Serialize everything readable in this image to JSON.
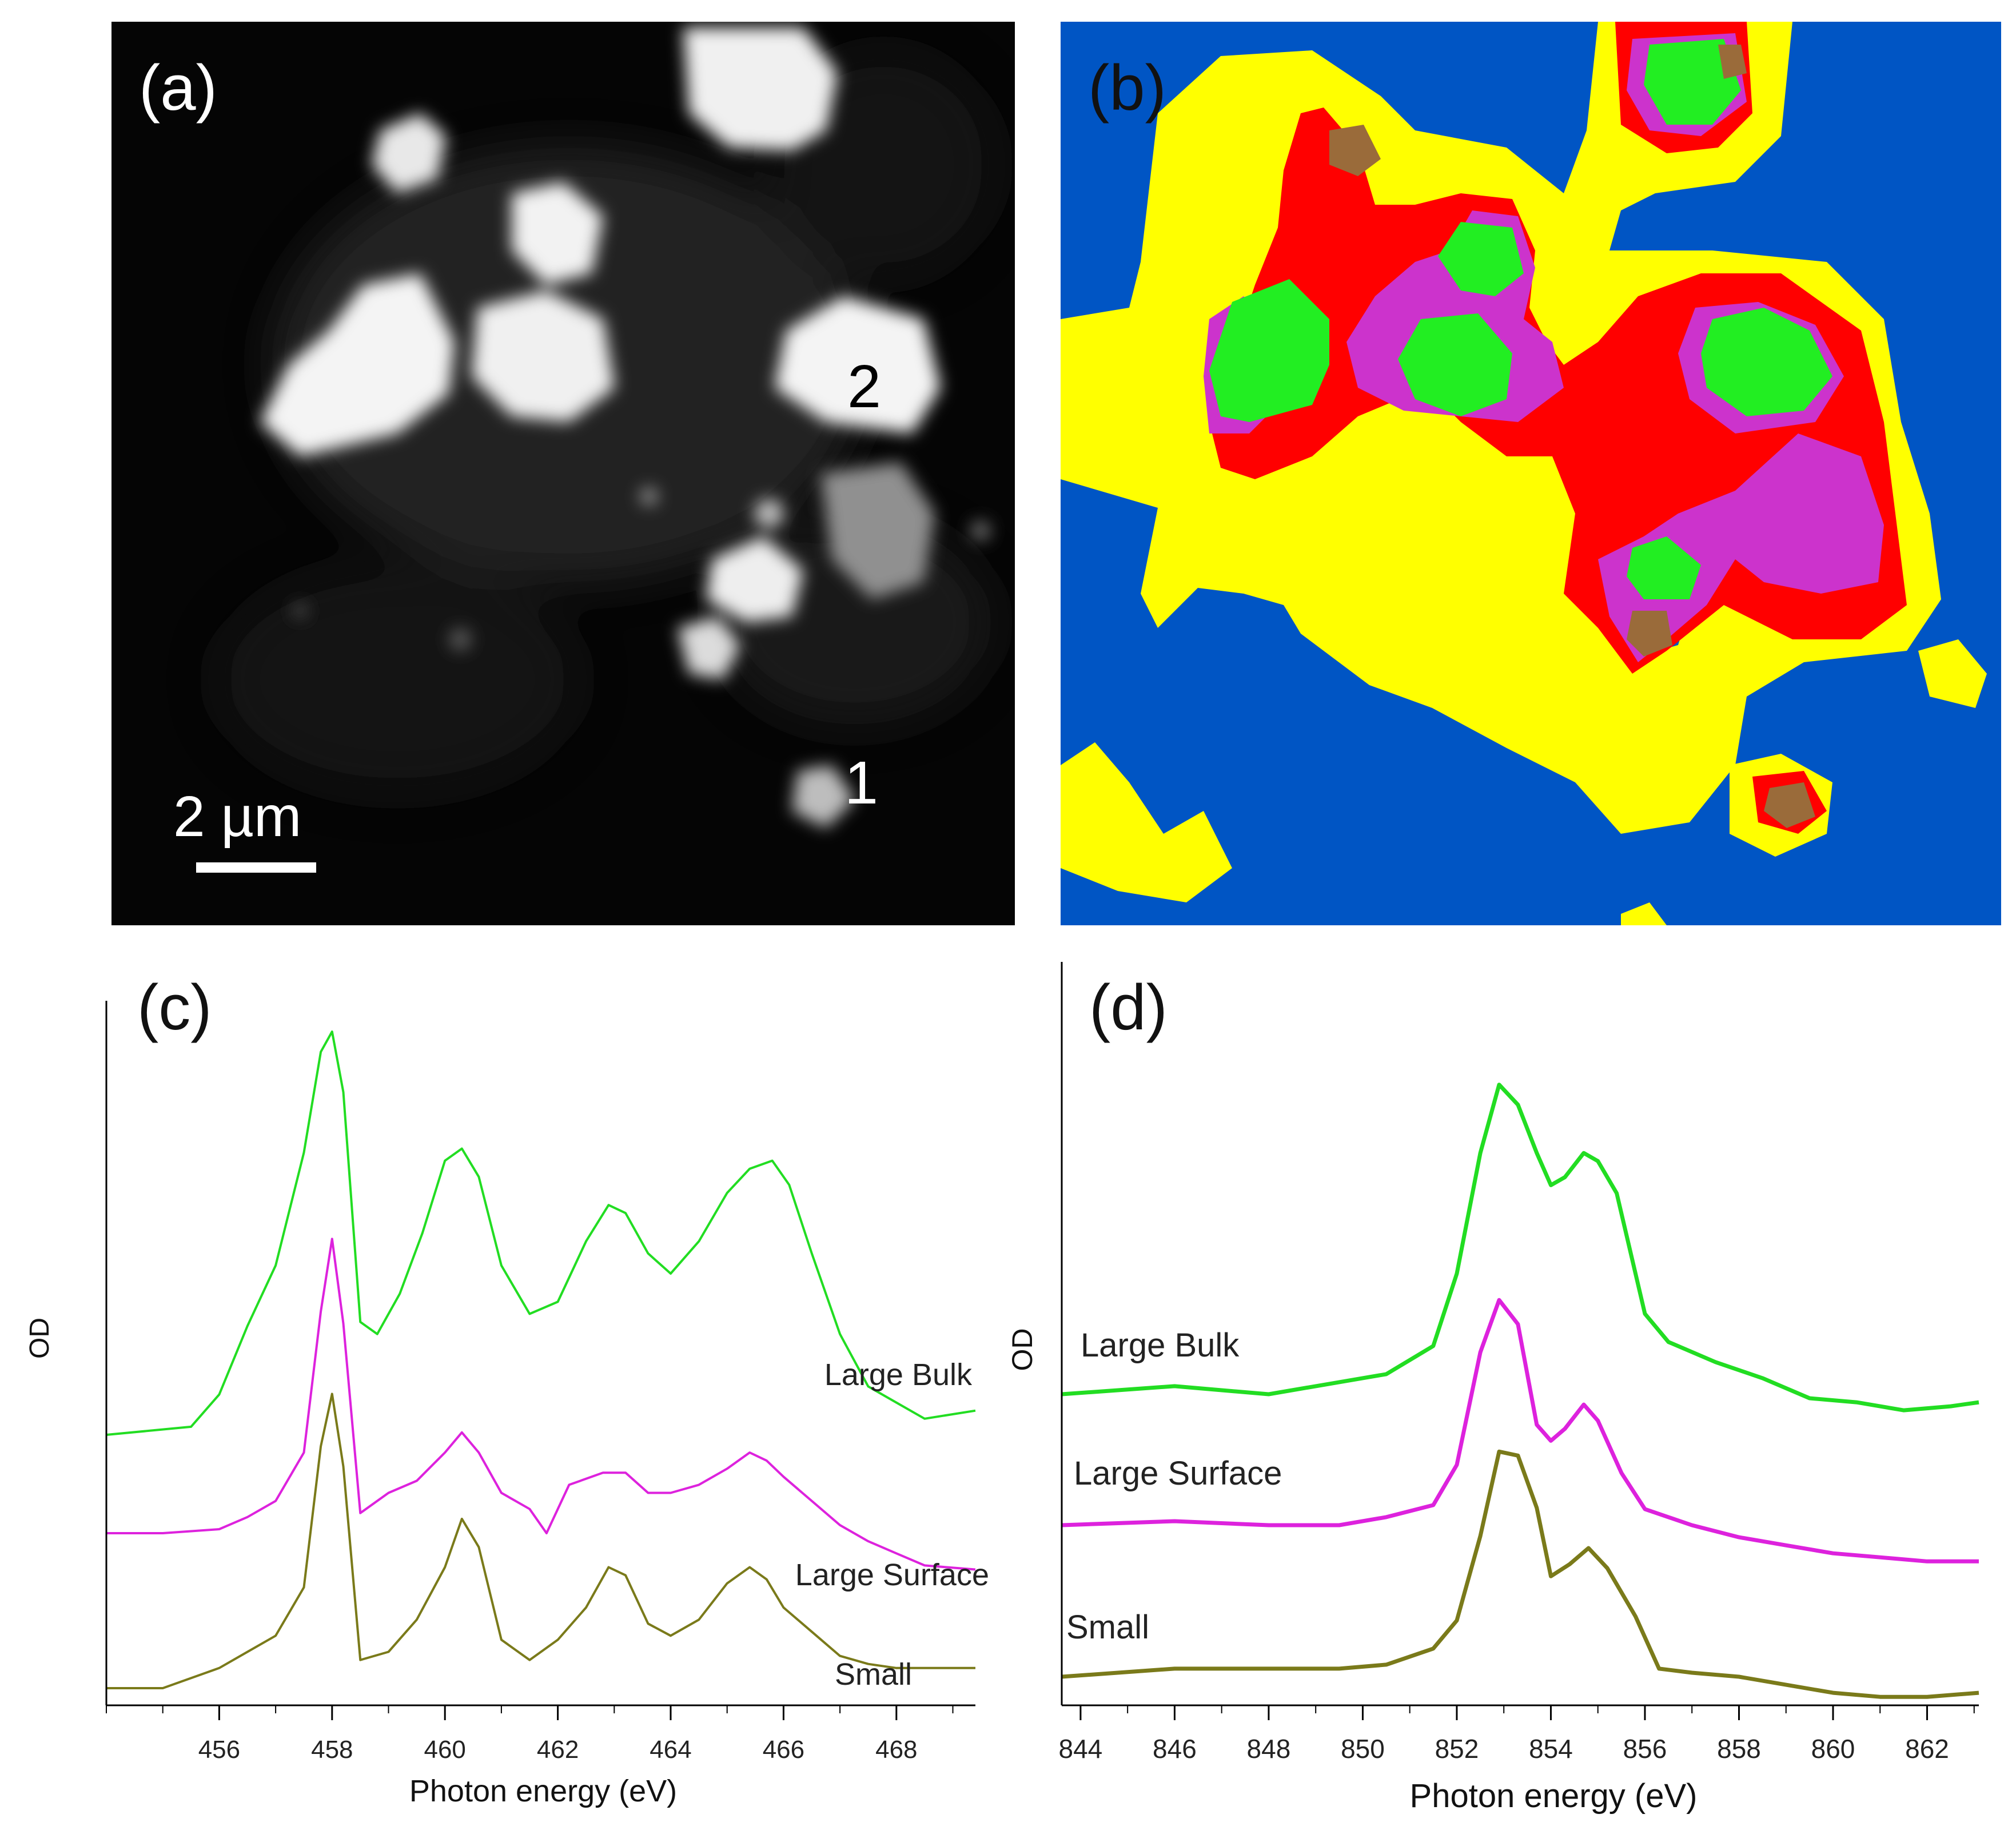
{
  "panel_a": {
    "tag": "(a)",
    "particle_labels": [
      "1",
      "2"
    ],
    "scale_bar": "2 µm"
  },
  "panel_b": {
    "tag": "(b)",
    "colors": {
      "background": "#0055c4",
      "yellow": "#ffff00",
      "red": "#ff0000",
      "magenta": "#cc33cc",
      "green": "#22ee22",
      "brown": "#9a6b3a"
    }
  },
  "chart_data": [
    {
      "type": "line",
      "tag": "(c)",
      "xlabel": "Photon energy (eV)",
      "ylabel": "OD",
      "xlim": [
        454.0,
        469.4
      ],
      "xticks": [
        456,
        458,
        460,
        462,
        464,
        466,
        468
      ],
      "grid": false,
      "series": [
        {
          "name": "Large Bulk",
          "color": "#22dd22",
          "x": [
            454.0,
            455.5,
            456.0,
            456.5,
            457.0,
            457.5,
            457.8,
            458.0,
            458.2,
            458.5,
            458.8,
            459.2,
            459.6,
            460.0,
            460.3,
            460.6,
            461.0,
            461.5,
            462.0,
            462.5,
            462.9,
            463.2,
            463.6,
            464.0,
            464.5,
            465.0,
            465.4,
            465.8,
            466.1,
            466.5,
            467.0,
            467.5,
            468.0,
            468.5,
            469.4
          ],
          "y": [
            0.0,
            0.02,
            0.1,
            0.27,
            0.42,
            0.7,
            0.95,
            1.0,
            0.85,
            0.28,
            0.25,
            0.35,
            0.5,
            0.68,
            0.71,
            0.64,
            0.42,
            0.3,
            0.33,
            0.48,
            0.57,
            0.55,
            0.45,
            0.4,
            0.48,
            0.6,
            0.66,
            0.68,
            0.62,
            0.45,
            0.25,
            0.12,
            0.08,
            0.04,
            0.06
          ]
        },
        {
          "name": "Large Surface",
          "color": "#dd22dd",
          "x": [
            454.0,
            455.0,
            456.0,
            456.5,
            457.0,
            457.5,
            457.8,
            458.0,
            458.2,
            458.5,
            459.0,
            459.5,
            460.0,
            460.3,
            460.6,
            461.0,
            461.5,
            461.8,
            462.2,
            462.8,
            463.2,
            463.6,
            464.0,
            464.5,
            465.0,
            465.4,
            465.7,
            466.0,
            466.5,
            467.0,
            467.5,
            468.0,
            468.5,
            469.4
          ],
          "y": [
            0.0,
            0.0,
            0.01,
            0.04,
            0.08,
            0.2,
            0.55,
            0.73,
            0.52,
            0.05,
            0.1,
            0.13,
            0.2,
            0.25,
            0.2,
            0.1,
            0.06,
            0.0,
            0.12,
            0.15,
            0.15,
            0.1,
            0.1,
            0.12,
            0.16,
            0.2,
            0.18,
            0.14,
            0.08,
            0.02,
            -0.02,
            -0.05,
            -0.08,
            -0.09
          ]
        },
        {
          "name": "Small",
          "color": "#7a7a1a",
          "x": [
            454.0,
            455.0,
            456.0,
            456.5,
            457.0,
            457.5,
            457.8,
            458.0,
            458.2,
            458.5,
            459.0,
            459.5,
            460.0,
            460.3,
            460.6,
            461.0,
            461.5,
            462.0,
            462.5,
            462.9,
            463.2,
            463.6,
            464.0,
            464.5,
            465.0,
            465.4,
            465.7,
            466.0,
            466.5,
            467.0,
            467.5,
            468.0,
            469.4
          ],
          "y": [
            0.0,
            0.0,
            0.05,
            0.09,
            0.13,
            0.25,
            0.6,
            0.73,
            0.55,
            0.07,
            0.09,
            0.17,
            0.3,
            0.42,
            0.35,
            0.12,
            0.07,
            0.12,
            0.2,
            0.3,
            0.28,
            0.16,
            0.13,
            0.17,
            0.26,
            0.3,
            0.27,
            0.2,
            0.14,
            0.08,
            0.06,
            0.05,
            0.05
          ]
        }
      ]
    },
    {
      "type": "line",
      "tag": "(d)",
      "xlabel": "Photon energy (eV)",
      "ylabel": "OD",
      "xlim": [
        843.6,
        863.1
      ],
      "xticks": [
        844,
        846,
        848,
        850,
        852,
        854,
        856,
        858,
        860,
        862
      ],
      "grid": false,
      "series": [
        {
          "name": "Large Bulk",
          "color": "#22dd22",
          "x": [
            843.6,
            846.0,
            848.0,
            849.5,
            850.5,
            851.5,
            852.0,
            852.5,
            852.9,
            853.3,
            853.7,
            854.0,
            854.3,
            854.7,
            855.0,
            855.4,
            856.0,
            856.5,
            857.5,
            858.5,
            859.5,
            860.5,
            861.5,
            862.5,
            863.1
          ],
          "y": [
            0.0,
            0.02,
            0.0,
            0.03,
            0.05,
            0.12,
            0.3,
            0.6,
            0.77,
            0.72,
            0.6,
            0.52,
            0.54,
            0.6,
            0.58,
            0.5,
            0.2,
            0.13,
            0.08,
            0.04,
            -0.01,
            -0.02,
            -0.04,
            -0.03,
            -0.02
          ]
        },
        {
          "name": "Large Surface",
          "color": "#dd22dd",
          "x": [
            843.6,
            846.0,
            848.0,
            849.5,
            850.5,
            851.5,
            852.0,
            852.5,
            852.9,
            853.3,
            853.7,
            854.0,
            854.3,
            854.7,
            855.0,
            855.5,
            856.0,
            857.0,
            858.0,
            859.0,
            860.0,
            861.0,
            862.0,
            863.1
          ],
          "y": [
            0.0,
            0.01,
            0.0,
            0.0,
            0.02,
            0.05,
            0.15,
            0.43,
            0.56,
            0.5,
            0.25,
            0.21,
            0.24,
            0.3,
            0.26,
            0.13,
            0.04,
            0.0,
            -0.03,
            -0.05,
            -0.07,
            -0.08,
            -0.09,
            -0.09
          ]
        },
        {
          "name": "Small",
          "color": "#7a7a1a",
          "x": [
            843.6,
            846.0,
            848.0,
            849.5,
            850.5,
            851.5,
            852.0,
            852.5,
            852.9,
            853.3,
            853.7,
            854.0,
            854.4,
            854.8,
            855.2,
            855.8,
            856.3,
            857.0,
            858.0,
            859.0,
            860.0,
            861.0,
            862.0,
            863.1
          ],
          "y": [
            0.0,
            0.02,
            0.02,
            0.02,
            0.03,
            0.07,
            0.14,
            0.35,
            0.56,
            0.55,
            0.42,
            0.25,
            0.28,
            0.32,
            0.27,
            0.15,
            0.02,
            0.01,
            0.0,
            -0.02,
            -0.04,
            -0.05,
            -0.05,
            -0.04
          ]
        }
      ]
    }
  ]
}
